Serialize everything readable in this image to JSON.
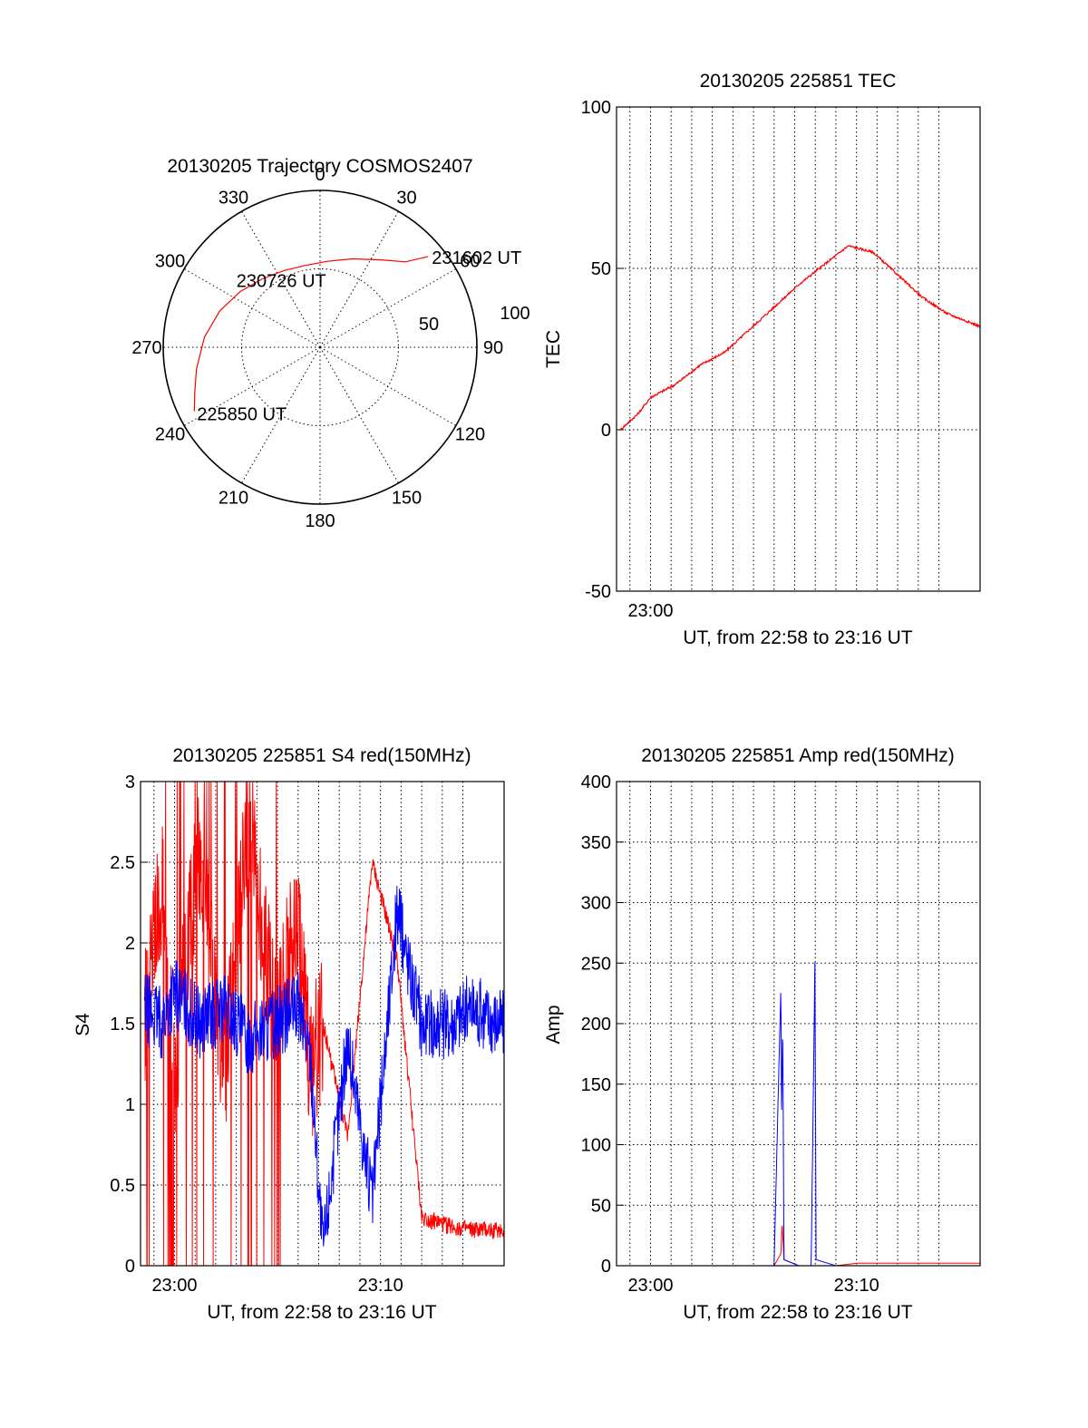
{
  "colors": {
    "red": "#ff0000",
    "blue": "#0000ff",
    "axis": "#000000",
    "grid": "#000000"
  },
  "chart_data": [
    {
      "type": "polar",
      "title": "20130205 Trajectory COSMOS2407",
      "angle_labels": [
        "0",
        "30",
        "60",
        "90",
        "120",
        "150",
        "180",
        "210",
        "240",
        "270",
        "300",
        "330"
      ],
      "radial_labels": [
        "50",
        "100"
      ],
      "radial_max": 100,
      "track": {
        "azimuth_deg": [
          243,
          250,
          260,
          275,
          290,
          305,
          320,
          335,
          350,
          5,
          20,
          35,
          45,
          50
        ],
        "zenith": [
          90,
          85,
          80,
          74,
          68,
          62,
          57,
          54,
          53,
          55,
          60,
          68,
          77,
          90
        ]
      },
      "annotations": [
        {
          "text": "225850 UT",
          "azimuth_deg": 243,
          "zenith": 90
        },
        {
          "text": "230726 UT",
          "azimuth_deg": 330,
          "zenith": 43
        },
        {
          "text": "231602 UT",
          "azimuth_deg": 50,
          "zenith": 90
        }
      ]
    },
    {
      "type": "line",
      "title": "20130205 225851 TEC",
      "xlabel": "UT, from 22:58 to 23:16 UT",
      "ylabel": "TEC",
      "xlim": [
        22.9725,
        23.2667
      ],
      "ylim": [
        -50,
        100
      ],
      "yticks": [
        "100",
        "50",
        "0",
        "-50"
      ],
      "xticks": [
        {
          "label": "23:00",
          "x": 23.0
        }
      ],
      "series": [
        {
          "color": "red",
          "x": [
            22.9756,
            22.99,
            23.0,
            23.02,
            23.04,
            23.06,
            23.08,
            23.1,
            23.12,
            23.14,
            23.16,
            23.18,
            23.2,
            23.22,
            23.24,
            23.26,
            23.2667
          ],
          "y": [
            0,
            5,
            10,
            14,
            20,
            24,
            31,
            38,
            45,
            51,
            57,
            55,
            48,
            41,
            36,
            33,
            32
          ]
        }
      ]
    },
    {
      "type": "line",
      "title": "20130205 225851 S4 red(150MHz)",
      "xlabel": "UT, from 22:58 to 23:16 UT",
      "ylabel": "S4",
      "xlim": [
        22.9725,
        23.2667
      ],
      "ylim": [
        0,
        3
      ],
      "yticks": [
        "3",
        "2.5",
        "2",
        "1.5",
        "1",
        "0.5",
        "0"
      ],
      "xticks": [
        {
          "label": "23:00",
          "x": 23.0
        },
        {
          "label": "23:10",
          "x": 23.1667
        }
      ],
      "series": [
        {
          "color": "red",
          "x": [
            22.9756,
            22.99,
            23.0,
            23.02,
            23.04,
            23.06,
            23.08,
            23.1,
            23.11,
            23.12,
            23.14,
            23.16,
            23.18,
            23.2,
            23.22,
            23.24,
            23.2667
          ],
          "y": [
            1.5,
            2.4,
            1.2,
            2.6,
            1.1,
            2.8,
            1.6,
            2.1,
            1.2,
            1.5,
            0.8,
            2.5,
            1.9,
            0.3,
            0.25,
            0.22,
            0.22
          ]
        },
        {
          "color": "blue",
          "x": [
            22.9756,
            22.99,
            23.0,
            23.02,
            23.04,
            23.06,
            23.08,
            23.1,
            23.11,
            23.12,
            23.14,
            23.16,
            23.18,
            23.2,
            23.22,
            23.24,
            23.2667
          ],
          "y": [
            1.6,
            1.5,
            1.7,
            1.5,
            1.6,
            1.4,
            1.5,
            1.6,
            1.3,
            0.1,
            1.4,
            0.4,
            2.2,
            1.5,
            1.5,
            1.6,
            1.5
          ]
        }
      ]
    },
    {
      "type": "line",
      "title": "20130205 225851 Amp red(150MHz)",
      "xlabel": "UT, from 22:58 to 23:16 UT",
      "ylabel": "Amp",
      "xlim": [
        22.9725,
        23.2667
      ],
      "ylim": [
        0,
        400
      ],
      "yticks": [
        "400",
        "350",
        "300",
        "250",
        "200",
        "150",
        "100",
        "50",
        "0"
      ],
      "xticks": [
        {
          "label": "23:00",
          "x": 23.0
        },
        {
          "label": "23:10",
          "x": 23.1667
        }
      ],
      "series": [
        {
          "color": "red",
          "x": [
            22.9756,
            23.05,
            23.1,
            23.1055,
            23.1065,
            23.108,
            23.12,
            23.1325,
            23.134,
            23.15,
            23.1667,
            23.2,
            23.2667
          ],
          "y": [
            0,
            0,
            0,
            10,
            35,
            5,
            0,
            0,
            0,
            0,
            2,
            2,
            2
          ]
        },
        {
          "color": "blue",
          "x": [
            22.9756,
            23.05,
            23.1,
            23.1045,
            23.1055,
            23.106,
            23.107,
            23.108,
            23.12,
            23.13,
            23.1325,
            23.133,
            23.134,
            23.15,
            23.2,
            23.2667
          ],
          "y": [
            0,
            0,
            0,
            190,
            230,
            120,
            200,
            5,
            0,
            0,
            205,
            260,
            5,
            0,
            0,
            0
          ]
        }
      ]
    }
  ]
}
